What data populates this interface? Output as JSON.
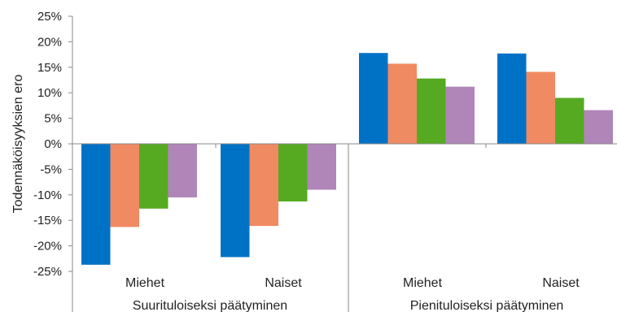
{
  "chart_data": {
    "type": "bar",
    "ylabel": "Todennäköisyyksien ero",
    "ylim": [
      -25,
      25
    ],
    "y_ticks": [
      "25%",
      "20%",
      "15%",
      "10%",
      "5%",
      "0%",
      "-5%",
      "-10%",
      "-15%",
      "-20%",
      "-25%"
    ],
    "y_tick_values": [
      25,
      20,
      15,
      10,
      5,
      0,
      -5,
      -10,
      -15,
      -20,
      -25
    ],
    "grid": false,
    "legend": "none",
    "groups": [
      {
        "label": "Suurituloiseksi päätyminen",
        "categories": [
          {
            "label": "Miehet",
            "values": [
              -23.7,
              -16.3,
              -12.7,
              -10.5
            ]
          },
          {
            "label": "Naiset",
            "values": [
              -22.2,
              -16.1,
              -11.3,
              -9.0
            ]
          }
        ]
      },
      {
        "label": "Pienituloiseksi päätyminen",
        "categories": [
          {
            "label": "Miehet",
            "values": [
              17.8,
              15.7,
              12.8,
              11.2
            ]
          },
          {
            "label": "Naiset",
            "values": [
              17.7,
              14.1,
              9.0,
              6.6
            ]
          }
        ]
      }
    ],
    "series_colors": [
      "#0072c6",
      "#f08a62",
      "#55aa22",
      "#b085b8"
    ]
  }
}
